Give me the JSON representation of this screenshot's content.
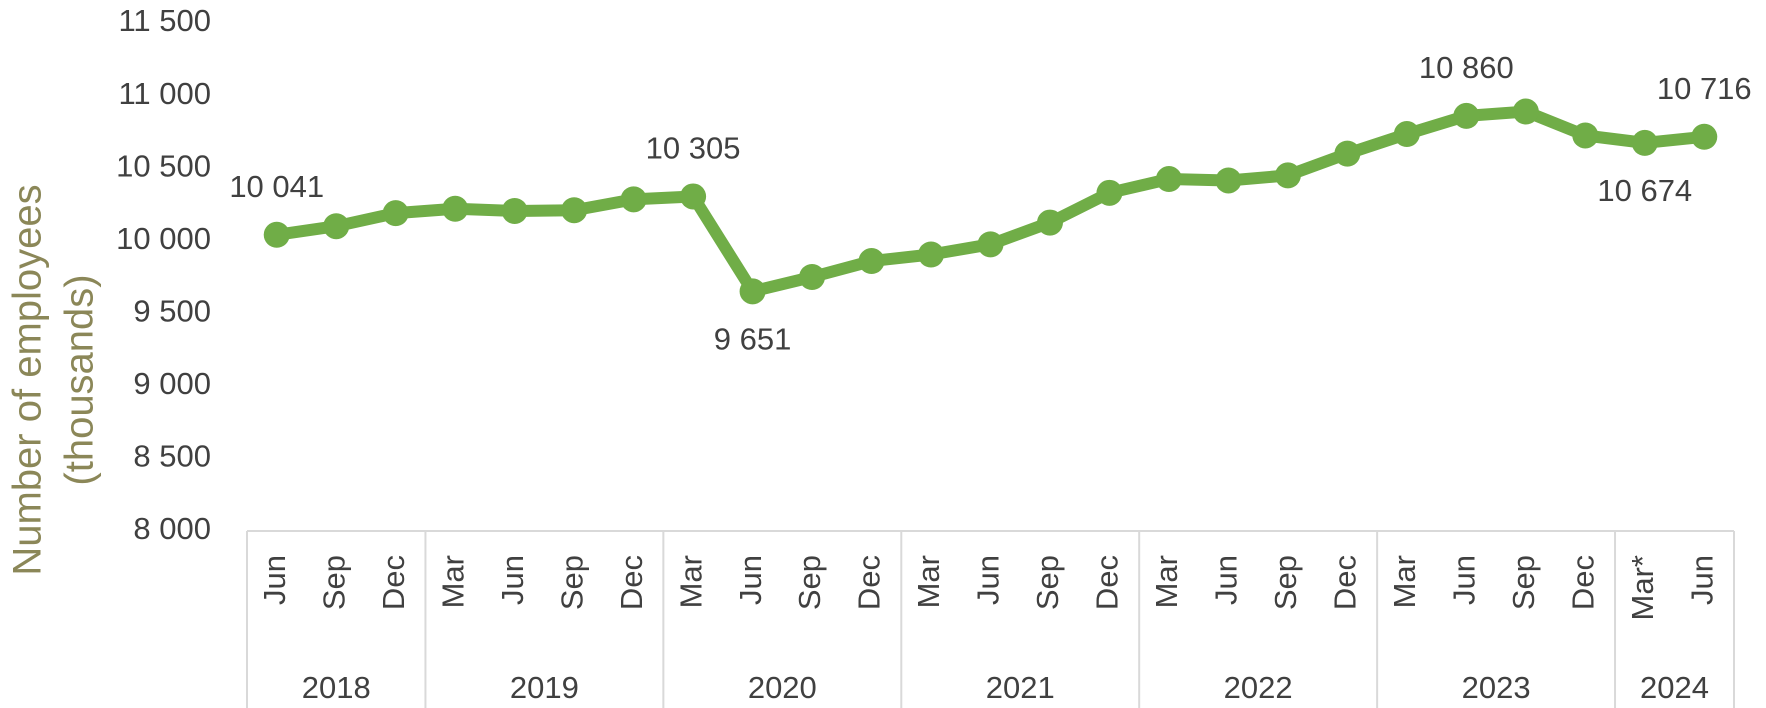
{
  "chart_data": {
    "type": "line",
    "ylabel": [
      "Number of employees",
      "(thousands)"
    ],
    "categories": [
      "Jun",
      "Sep",
      "Dec",
      "Mar",
      "Jun",
      "Sep",
      "Dec",
      "Mar",
      "Jun",
      "Sep",
      "Dec",
      "Mar",
      "Jun",
      "Sep",
      "Dec",
      "Mar",
      "Jun",
      "Sep",
      "Dec",
      "Mar",
      "Jun",
      "Sep",
      "Dec",
      "Mar*",
      "Jun"
    ],
    "groups": [
      {
        "name": "2018",
        "count": 3
      },
      {
        "name": "2019",
        "count": 4
      },
      {
        "name": "2020",
        "count": 4
      },
      {
        "name": "2021",
        "count": 4
      },
      {
        "name": "2022",
        "count": 4
      },
      {
        "name": "2023",
        "count": 4
      },
      {
        "name": "2024",
        "count": 2
      }
    ],
    "series": [
      {
        "name": "Employees",
        "color": "#70ad47",
        "values": [
          10041,
          10100,
          10190,
          10220,
          10205,
          10210,
          10285,
          10305,
          9651,
          9750,
          9860,
          9905,
          9975,
          10125,
          10330,
          10425,
          10415,
          10450,
          10600,
          10735,
          10860,
          10890,
          10725,
          10674,
          10716
        ],
        "value_labels": [
          "10 041",
          null,
          null,
          null,
          null,
          null,
          null,
          "10 305",
          "9 651",
          null,
          null,
          null,
          null,
          null,
          null,
          null,
          null,
          null,
          null,
          null,
          "10 860",
          null,
          null,
          "10 674",
          "10 716"
        ]
      }
    ],
    "ylim": [
      8000,
      11500
    ],
    "yticks": [
      {
        "value": 8000,
        "label": "8 000"
      },
      {
        "value": 8500,
        "label": "8 500"
      },
      {
        "value": 9000,
        "label": "9 000"
      },
      {
        "value": 9500,
        "label": "9 500"
      },
      {
        "value": 10000,
        "label": "10 000"
      },
      {
        "value": 10500,
        "label": "10 500"
      },
      {
        "value": 11000,
        "label": "11 000"
      },
      {
        "value": 11500,
        "label": "11 500"
      }
    ],
    "grid": false
  }
}
